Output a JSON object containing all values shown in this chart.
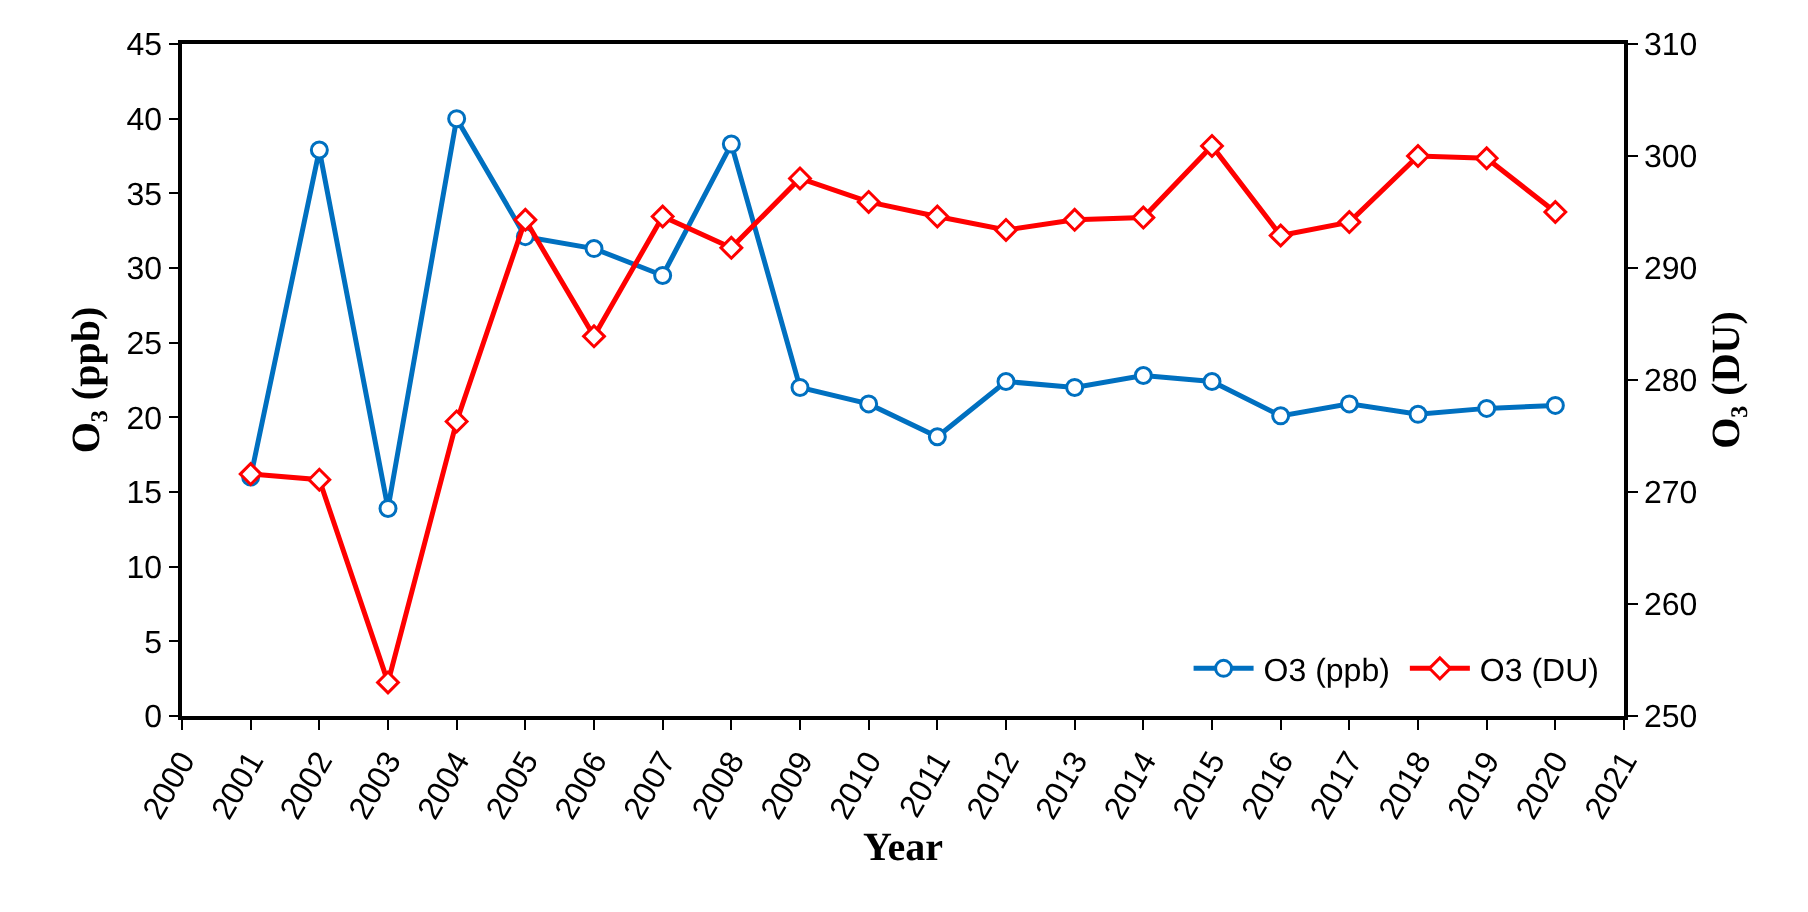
{
  "chart_data": {
    "type": "line",
    "xlabel": "Year",
    "ylabel": "O₃ (ppb)",
    "y2label": "O₃ (DU)",
    "x": [
      2001,
      2002,
      2003,
      2004,
      2005,
      2006,
      2007,
      2008,
      2009,
      2010,
      2011,
      2012,
      2013,
      2014,
      2015,
      2016,
      2017,
      2018,
      2019,
      2020
    ],
    "series": [
      {
        "name": "O3 (ppb)",
        "color": "#0070c0",
        "marker": "circle",
        "values": [
          16.0,
          37.9,
          13.9,
          40.0,
          32.1,
          31.3,
          29.5,
          38.3,
          22.0,
          20.9,
          18.7,
          22.4,
          22.0,
          22.8,
          22.4,
          20.1,
          20.9,
          20.2,
          20.6,
          20.8
        ]
      },
      {
        "name": "O3 (DU)",
        "color": "#ff0000",
        "marker": "diamond",
        "axis": "y2",
        "values": [
          271.6,
          271.1,
          253.0,
          276.3,
          294.3,
          283.9,
          294.6,
          291.8,
          298.0,
          295.9,
          294.6,
          293.4,
          294.3,
          294.5,
          300.9,
          292.9,
          294.1,
          300.0,
          299.8,
          295.0
        ]
      }
    ],
    "xlim": [
      2000,
      2021
    ],
    "xticks": [
      2000,
      2001,
      2002,
      2003,
      2004,
      2005,
      2006,
      2007,
      2008,
      2009,
      2010,
      2011,
      2012,
      2013,
      2014,
      2015,
      2016,
      2017,
      2018,
      2019,
      2020,
      2021
    ],
    "ylim": [
      0,
      45
    ],
    "yticks": [
      0,
      5,
      10,
      15,
      20,
      25,
      30,
      35,
      40,
      45
    ],
    "y2lim": [
      250,
      310
    ],
    "y2ticks": [
      250,
      260,
      270,
      280,
      290,
      300,
      310
    ],
    "grid": false,
    "legend": "bottom right",
    "line_style": "solid"
  }
}
